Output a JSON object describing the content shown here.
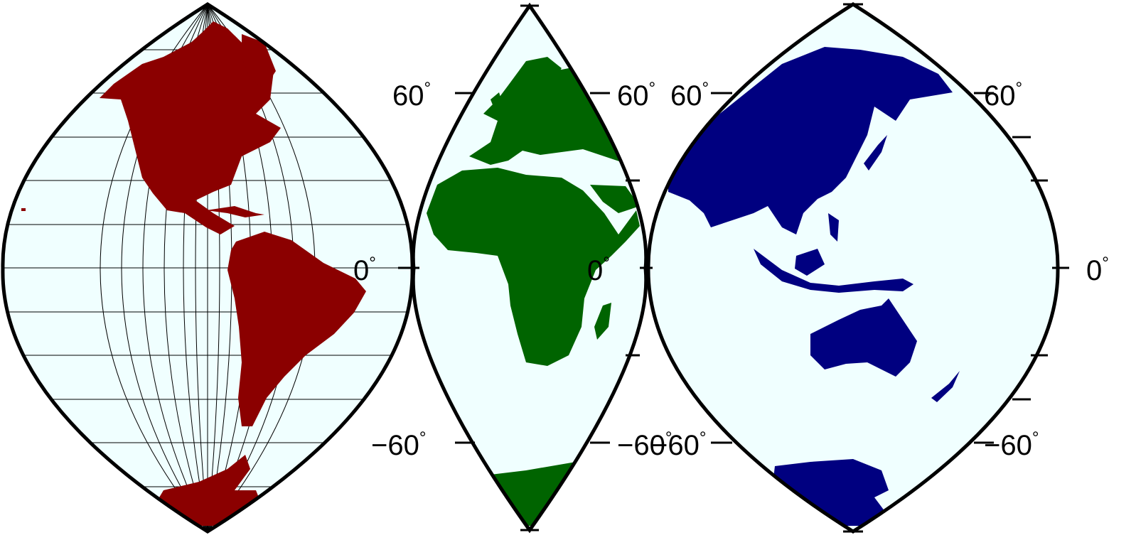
{
  "maps": [
    {
      "id": "americas",
      "land_color": "#8b0000",
      "ocean_color": "#f0ffff",
      "gridlines": true,
      "left_labels": [],
      "right_labels": [
        {
          "text": "0",
          "unit": "°"
        }
      ]
    },
    {
      "id": "europe-africa",
      "land_color": "#006400",
      "ocean_color": "#f0ffff",
      "gridlines": false,
      "left_labels": [
        {
          "text": "60",
          "unit": "°"
        },
        {
          "text": "−60",
          "unit": "°"
        }
      ],
      "right_labels": [
        {
          "text": "60",
          "unit": "°"
        },
        {
          "text": "0",
          "unit": "°"
        },
        {
          "text": "−60",
          "unit": "°"
        }
      ]
    },
    {
      "id": "asia-australia",
      "land_color": "#000080",
      "ocean_color": "#f0ffff",
      "gridlines": false,
      "left_labels": [
        {
          "text": "60",
          "unit": "°"
        },
        {
          "text": "−60",
          "unit": "°"
        }
      ],
      "right_labels": [
        {
          "text": "60",
          "unit": "°"
        },
        {
          "text": "0",
          "unit": "°"
        },
        {
          "text": "−60",
          "unit": "°"
        }
      ]
    }
  ]
}
